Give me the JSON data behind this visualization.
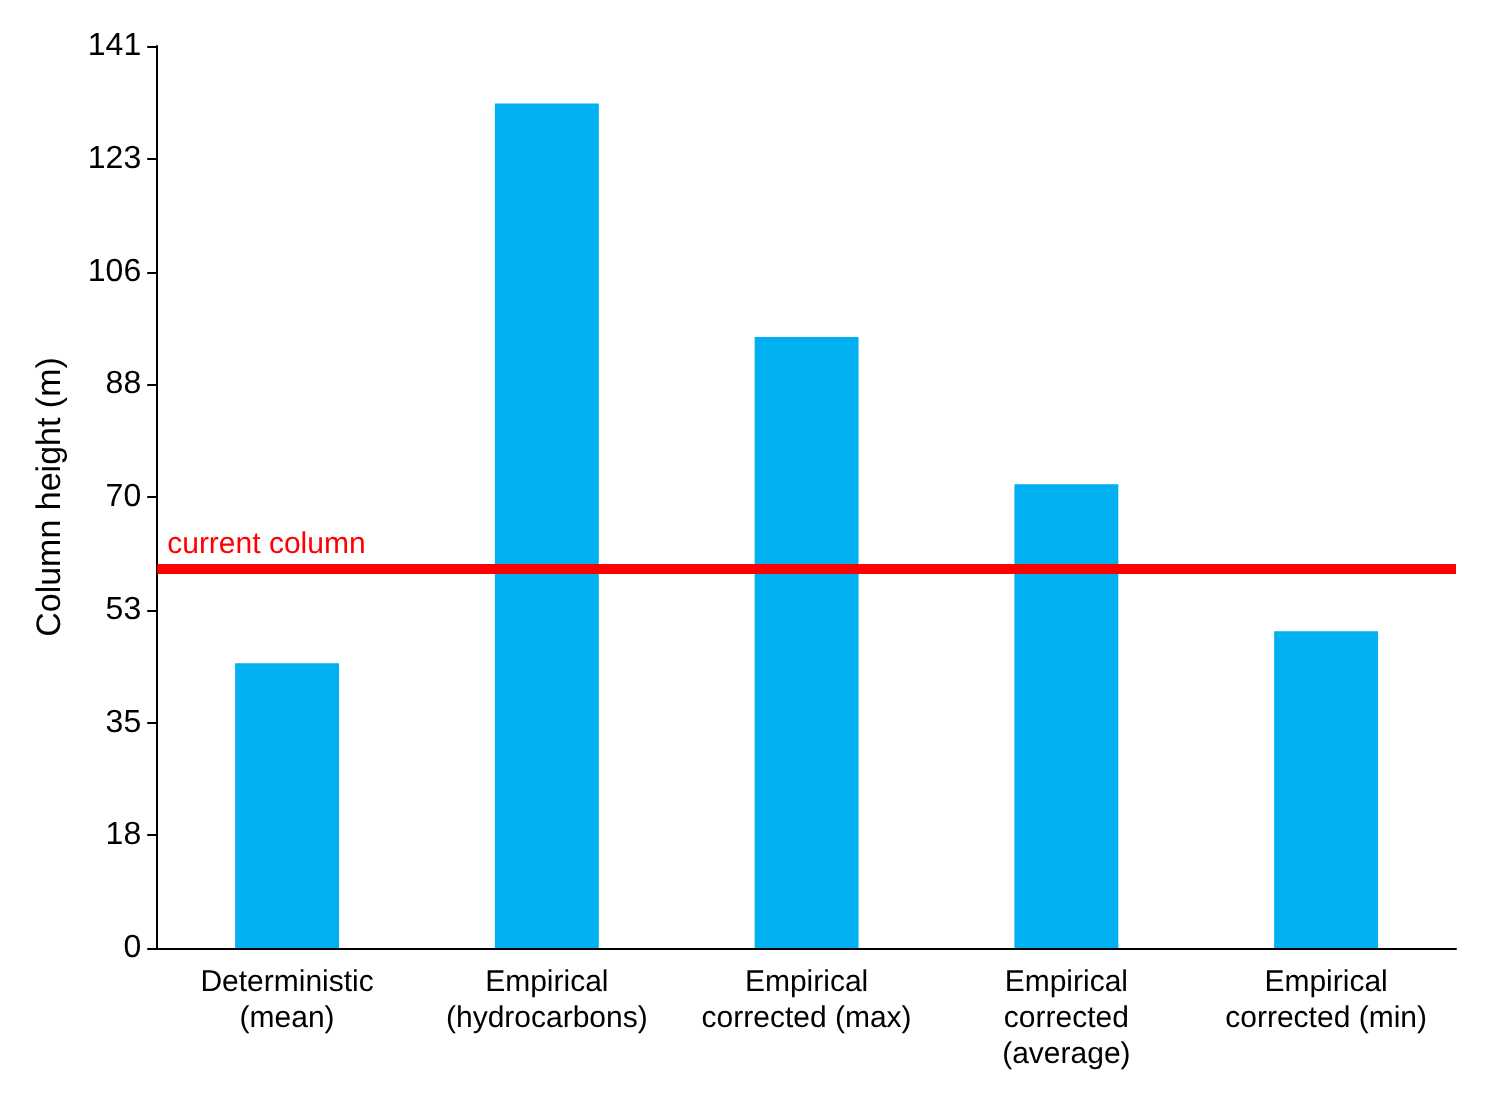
{
  "chart_data": {
    "type": "bar",
    "ylabel": "Column height (m)",
    "categories": [
      "Deterministic\n(mean)",
      "Empirical\n(hydrocarbons)",
      "Empirical\ncorrected (max)",
      "Empirical\ncorrected\n(average)",
      "Empirical\ncorrected (min)"
    ],
    "values": [
      44.5,
      132,
      95.5,
      72.5,
      49.5
    ],
    "color": "#00b0f0",
    "ylim": [
      0,
      141
    ],
    "yticks": [
      0,
      {
        "value": 17.625,
        "label": "18"
      },
      {
        "value": 35.25,
        "label": "35"
      },
      {
        "value": 52.875,
        "label": "53"
      },
      {
        "value": 70.5,
        "label": "70"
      },
      {
        "value": 88.125,
        "label": "88"
      },
      {
        "value": 105.75,
        "label": "106"
      },
      {
        "value": 123.375,
        "label": "123"
      },
      141
    ],
    "ref_lines": [
      {
        "axis": "y",
        "value": 59.3,
        "label": "current column",
        "color": "#ff0000",
        "line_style": "solid"
      }
    ],
    "data_labels": false
  }
}
